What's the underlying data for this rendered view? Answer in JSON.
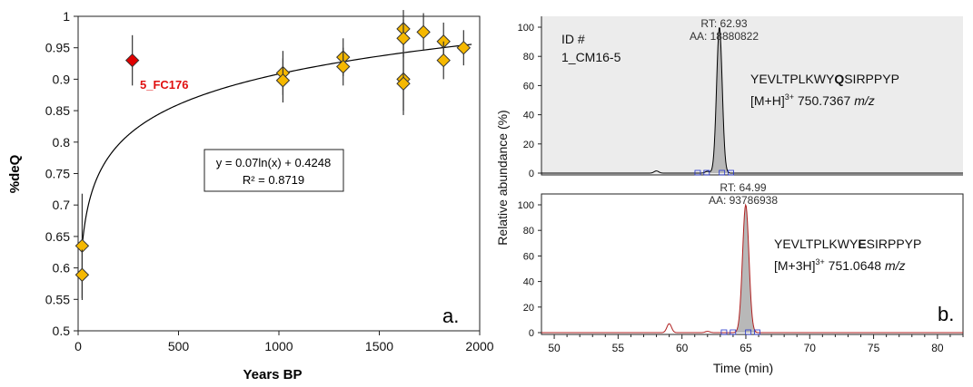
{
  "chart_data": [
    {
      "type": "scatter",
      "panel_label": "a.",
      "xlabel": "Years BP",
      "ylabel": "%deQ",
      "xlim": [
        0,
        2000
      ],
      "ylim": [
        0.5,
        1.0
      ],
      "xticks": [
        0,
        500,
        1000,
        1500,
        2000
      ],
      "yticks": [
        0.5,
        0.55,
        0.6,
        0.65,
        0.7,
        0.75,
        0.8,
        0.85,
        0.9,
        0.95,
        1.0
      ],
      "grid": false,
      "colors": {
        "points": "#f5b800",
        "outlier": "#e00000",
        "outline": "#333333",
        "fit": "#000000",
        "outlier_label": "#e01010"
      },
      "points": [
        {
          "x": 20,
          "y": 0.635,
          "err": 0.083
        },
        {
          "x": 20,
          "y": 0.589,
          "err": 0.04
        },
        {
          "x": 1020,
          "y": 0.91,
          "err": 0.035
        },
        {
          "x": 1020,
          "y": 0.898,
          "err": 0.035
        },
        {
          "x": 1320,
          "y": 0.935,
          "err": 0.03
        },
        {
          "x": 1320,
          "y": 0.92,
          "err": 0.03
        },
        {
          "x": 1620,
          "y": 0.98,
          "err": 0.03
        },
        {
          "x": 1620,
          "y": 0.965,
          "err": 0.03
        },
        {
          "x": 1620,
          "y": 0.9,
          "err": 0.05
        },
        {
          "x": 1620,
          "y": 0.893,
          "err": 0.05
        },
        {
          "x": 1720,
          "y": 0.975,
          "err": 0.03
        },
        {
          "x": 1820,
          "y": 0.96,
          "err": 0.03
        },
        {
          "x": 1820,
          "y": 0.93,
          "err": 0.03
        },
        {
          "x": 1920,
          "y": 0.95,
          "err": 0.028
        }
      ],
      "outlier": {
        "x": 270,
        "y": 0.93,
        "err": 0.04,
        "label": "5_FC176"
      },
      "fit": {
        "a": 0.07,
        "b": 0.4248,
        "equation": "y = 0.07ln(x) + 0.4248",
        "r2": "R² = 0.8719"
      }
    },
    {
      "type": "line",
      "panel_label": "b.",
      "xlabel": "Time (min)",
      "ylabel": "Relative abundance (%)",
      "xlim": [
        49,
        82
      ],
      "ylim": [
        0,
        100
      ],
      "xticks": [
        50,
        55,
        60,
        65,
        70,
        75,
        80
      ],
      "yticks": [
        0,
        20,
        40,
        60,
        80,
        100
      ],
      "colors": {
        "top_trace": "#000000",
        "bottom_trace": "#b02020",
        "fill": "#b8b8b8",
        "top_bg": "#ececec",
        "baseline_marker": "#2233cc"
      },
      "sample_id": {
        "line1": "ID #",
        "line2": "1_CM16-5"
      },
      "series": [
        {
          "peak_rt": 62.93,
          "peak_sigma": 0.22,
          "rt_label": "RT: 62.93",
          "aa_label": "AA: 18880822",
          "peptide_prefix": "YEVLTPLKWY",
          "peptide_residue": "Q",
          "peptide_suffix": "SIRPPYP",
          "ion_prefix": "[M+H]",
          "ion_charge": "3+",
          "ion_mass": "750.7367",
          "ion_unit": "m/z",
          "minor_peaks": [
            {
              "x": 58.0,
              "y": 1.5
            },
            {
              "x": 62.0,
              "y": 1.2
            }
          ]
        },
        {
          "peak_rt": 64.99,
          "peak_sigma": 0.25,
          "rt_label": "RT: 64.99",
          "aa_label": "AA: 93786938",
          "peptide_prefix": "YEVLTPLKWY",
          "peptide_residue": "E",
          "peptide_suffix": "SIRPPYP",
          "ion_prefix": "[M+3H]",
          "ion_charge": "3+",
          "ion_mass": "751.0648",
          "ion_unit": "m/z",
          "minor_peaks": [
            {
              "x": 59.0,
              "y": 7.0
            },
            {
              "x": 62.0,
              "y": 1.0
            }
          ]
        }
      ]
    }
  ]
}
